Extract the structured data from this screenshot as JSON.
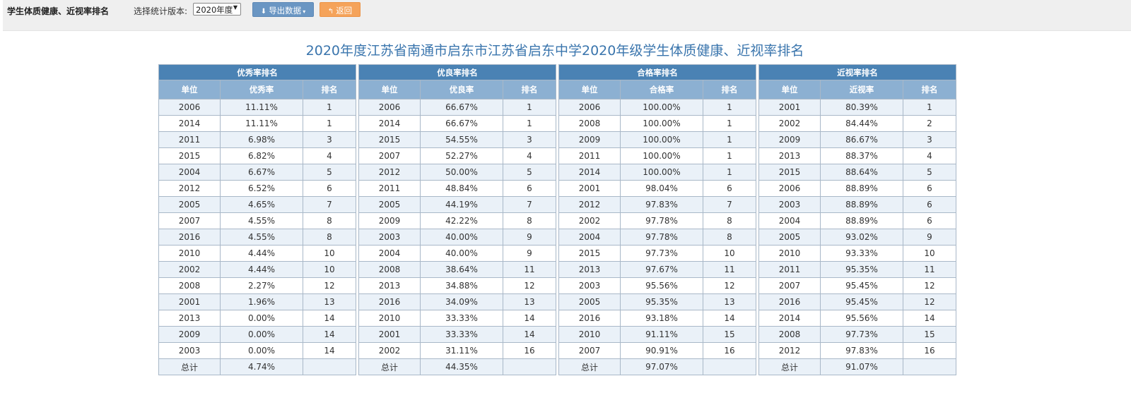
{
  "toolbar": {
    "app_title": "学生体质健康、近视率排名",
    "version_label": "选择统计版本:",
    "version_value": "2020年度",
    "export_label": "导出数据",
    "back_label": "返回"
  },
  "report_title": "2020年度江苏省南通市启东市江苏省启东中学2020年级学生体质健康、近视率排名",
  "tables": [
    {
      "group": "优秀率排名",
      "columns": [
        "单位",
        "优秀率",
        "排名"
      ],
      "rows": [
        [
          "2006",
          "11.11%",
          "1"
        ],
        [
          "2014",
          "11.11%",
          "1"
        ],
        [
          "2011",
          "6.98%",
          "3"
        ],
        [
          "2015",
          "6.82%",
          "4"
        ],
        [
          "2004",
          "6.67%",
          "5"
        ],
        [
          "2012",
          "6.52%",
          "6"
        ],
        [
          "2005",
          "4.65%",
          "7"
        ],
        [
          "2007",
          "4.55%",
          "8"
        ],
        [
          "2016",
          "4.55%",
          "8"
        ],
        [
          "2010",
          "4.44%",
          "10"
        ],
        [
          "2002",
          "4.44%",
          "10"
        ],
        [
          "2008",
          "2.27%",
          "12"
        ],
        [
          "2001",
          "1.96%",
          "13"
        ],
        [
          "2013",
          "0.00%",
          "14"
        ],
        [
          "2009",
          "0.00%",
          "14"
        ],
        [
          "2003",
          "0.00%",
          "14"
        ],
        [
          "总计",
          "4.74%",
          ""
        ]
      ]
    },
    {
      "group": "优良率排名",
      "columns": [
        "单位",
        "优良率",
        "排名"
      ],
      "rows": [
        [
          "2006",
          "66.67%",
          "1"
        ],
        [
          "2014",
          "66.67%",
          "1"
        ],
        [
          "2015",
          "54.55%",
          "3"
        ],
        [
          "2007",
          "52.27%",
          "4"
        ],
        [
          "2012",
          "50.00%",
          "5"
        ],
        [
          "2011",
          "48.84%",
          "6"
        ],
        [
          "2005",
          "44.19%",
          "7"
        ],
        [
          "2009",
          "42.22%",
          "8"
        ],
        [
          "2003",
          "40.00%",
          "9"
        ],
        [
          "2004",
          "40.00%",
          "9"
        ],
        [
          "2008",
          "38.64%",
          "11"
        ],
        [
          "2013",
          "34.88%",
          "12"
        ],
        [
          "2016",
          "34.09%",
          "13"
        ],
        [
          "2010",
          "33.33%",
          "14"
        ],
        [
          "2001",
          "33.33%",
          "14"
        ],
        [
          "2002",
          "31.11%",
          "16"
        ],
        [
          "总计",
          "44.35%",
          ""
        ]
      ]
    },
    {
      "group": "合格率排名",
      "columns": [
        "单位",
        "合格率",
        "排名"
      ],
      "rows": [
        [
          "2006",
          "100.00%",
          "1"
        ],
        [
          "2008",
          "100.00%",
          "1"
        ],
        [
          "2009",
          "100.00%",
          "1"
        ],
        [
          "2011",
          "100.00%",
          "1"
        ],
        [
          "2014",
          "100.00%",
          "1"
        ],
        [
          "2001",
          "98.04%",
          "6"
        ],
        [
          "2012",
          "97.83%",
          "7"
        ],
        [
          "2002",
          "97.78%",
          "8"
        ],
        [
          "2004",
          "97.78%",
          "8"
        ],
        [
          "2015",
          "97.73%",
          "10"
        ],
        [
          "2013",
          "97.67%",
          "11"
        ],
        [
          "2003",
          "95.56%",
          "12"
        ],
        [
          "2005",
          "95.35%",
          "13"
        ],
        [
          "2016",
          "93.18%",
          "14"
        ],
        [
          "2010",
          "91.11%",
          "15"
        ],
        [
          "2007",
          "90.91%",
          "16"
        ],
        [
          "总计",
          "97.07%",
          ""
        ]
      ]
    },
    {
      "group": "近视率排名",
      "columns": [
        "单位",
        "近视率",
        "排名"
      ],
      "rows": [
        [
          "2001",
          "80.39%",
          "1"
        ],
        [
          "2002",
          "84.44%",
          "2"
        ],
        [
          "2009",
          "86.67%",
          "3"
        ],
        [
          "2013",
          "88.37%",
          "4"
        ],
        [
          "2015",
          "88.64%",
          "5"
        ],
        [
          "2006",
          "88.89%",
          "6"
        ],
        [
          "2003",
          "88.89%",
          "6"
        ],
        [
          "2004",
          "88.89%",
          "6"
        ],
        [
          "2005",
          "93.02%",
          "9"
        ],
        [
          "2010",
          "93.33%",
          "10"
        ],
        [
          "2011",
          "95.35%",
          "11"
        ],
        [
          "2007",
          "95.45%",
          "12"
        ],
        [
          "2016",
          "95.45%",
          "12"
        ],
        [
          "2014",
          "95.56%",
          "14"
        ],
        [
          "2008",
          "97.73%",
          "15"
        ],
        [
          "2012",
          "97.83%",
          "16"
        ],
        [
          "总计",
          "91.07%",
          ""
        ]
      ]
    }
  ]
}
